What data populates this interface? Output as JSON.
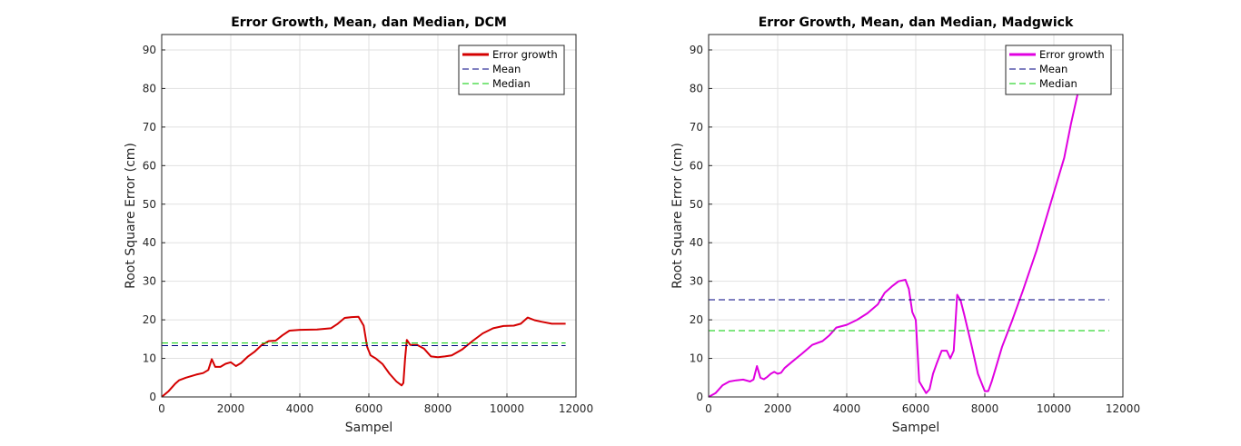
{
  "chart_data": [
    {
      "type": "line",
      "title": "Error Growth, Mean, dan Median, DCM",
      "xlabel": "Sampel",
      "ylabel": "Root Square Error (cm)",
      "xlim": [
        0,
        12000
      ],
      "ylim": [
        0,
        94
      ],
      "xticks": [
        0,
        2000,
        4000,
        6000,
        8000,
        10000,
        12000
      ],
      "yticks": [
        0,
        10,
        20,
        30,
        40,
        50,
        60,
        70,
        80,
        90
      ],
      "xtick_labels": [
        "0",
        "2000",
        "4000",
        "6000",
        "8000",
        "10000",
        "12000"
      ],
      "ytick_labels": [
        "0",
        "10",
        "20",
        "30",
        "40",
        "50",
        "60",
        "70",
        "80",
        "90"
      ],
      "grid": true,
      "legend_position": "top-right",
      "series": [
        {
          "name": "Error growth",
          "style": "solid",
          "color": "#d40000",
          "x": [
            0,
            200,
            400,
            500,
            700,
            1000,
            1200,
            1350,
            1450,
            1550,
            1700,
            1850,
            2000,
            2150,
            2300,
            2500,
            2700,
            2900,
            3100,
            3300,
            3500,
            3700,
            4000,
            4500,
            4900,
            5100,
            5300,
            5500,
            5700,
            5850,
            5950,
            6050,
            6200,
            6400,
            6600,
            6800,
            6950,
            7000,
            7050,
            7100,
            7200,
            7400,
            7600,
            7800,
            8000,
            8200,
            8400,
            8700,
            9000,
            9300,
            9600,
            9900,
            10200,
            10400,
            10600,
            10800,
            11000,
            11300,
            11700
          ],
          "y": [
            0,
            1.5,
            3.5,
            4.3,
            5,
            5.8,
            6.2,
            7,
            9.8,
            7.8,
            7.8,
            8.6,
            9,
            8,
            8.8,
            10.5,
            11.8,
            13.5,
            14.5,
            14.6,
            16,
            17.2,
            17.4,
            17.5,
            17.8,
            19,
            20.5,
            20.7,
            20.8,
            18.5,
            13,
            10.8,
            10,
            8.5,
            6,
            4,
            3,
            3.6,
            10,
            14.8,
            13.5,
            13.5,
            12.5,
            10.5,
            10.3,
            10.5,
            10.8,
            12.3,
            14.5,
            16.5,
            17.8,
            18.4,
            18.5,
            19,
            20.6,
            19.9,
            19.5,
            19,
            19
          ]
        },
        {
          "name": "Mean",
          "style": "dashed",
          "color": "#000080",
          "x": [
            0,
            11700
          ],
          "y": [
            13.3,
            13.3
          ]
        },
        {
          "name": "Median",
          "style": "dashed",
          "color": "#00cc00",
          "x": [
            0,
            11700
          ],
          "y": [
            14,
            14
          ]
        }
      ]
    },
    {
      "type": "line",
      "title": "Error Growth, Mean, dan Median, Madgwick",
      "xlabel": "Sampel",
      "ylabel": "Root Square Error (cm)",
      "xlim": [
        0,
        12000
      ],
      "ylim": [
        0,
        94
      ],
      "xticks": [
        0,
        2000,
        4000,
        6000,
        8000,
        10000,
        12000
      ],
      "yticks": [
        0,
        10,
        20,
        30,
        40,
        50,
        60,
        70,
        80,
        90
      ],
      "xtick_labels": [
        "0",
        "2000",
        "4000",
        "6000",
        "8000",
        "10000",
        "12000"
      ],
      "ytick_labels": [
        "0",
        "10",
        "20",
        "30",
        "40",
        "50",
        "60",
        "70",
        "80",
        "90"
      ],
      "grid": true,
      "legend_position": "top-right",
      "series": [
        {
          "name": "Error growth",
          "style": "solid",
          "color": "#e000e0",
          "x": [
            0,
            200,
            400,
            600,
            800,
            1000,
            1200,
            1300,
            1400,
            1500,
            1600,
            1700,
            1800,
            1900,
            2000,
            2100,
            2200,
            2400,
            2700,
            3000,
            3300,
            3500,
            3700,
            4000,
            4300,
            4600,
            4900,
            5100,
            5300,
            5500,
            5700,
            5800,
            5900,
            6000,
            6100,
            6200,
            6300,
            6400,
            6500,
            6600,
            6750,
            6900,
            7000,
            7100,
            7200,
            7300,
            7400,
            7600,
            7800,
            8000,
            8100,
            8200,
            8300,
            8500,
            8800,
            9100,
            9500,
            10000,
            10300,
            10500,
            10700,
            11200,
            11600
          ],
          "y": [
            0,
            1,
            3,
            4,
            4.3,
            4.5,
            4,
            4.5,
            8,
            5,
            4.6,
            5.2,
            6,
            6.5,
            6,
            6.3,
            7.5,
            9,
            11.2,
            13.5,
            14.5,
            16,
            18,
            18.7,
            20,
            21.7,
            24,
            27,
            28.6,
            30,
            30.4,
            28,
            22,
            20,
            4,
            2.5,
            1,
            2,
            6,
            8.5,
            12,
            12,
            10,
            12,
            26.5,
            25,
            21.5,
            14,
            6,
            1.5,
            1.5,
            4,
            7,
            13,
            20,
            27.5,
            38,
            53,
            62,
            71,
            79,
            88.5,
            89
          ]
        },
        {
          "name": "Mean",
          "style": "dashed",
          "color": "#000080",
          "x": [
            0,
            11600
          ],
          "y": [
            25.2,
            25.2
          ]
        },
        {
          "name": "Median",
          "style": "dashed",
          "color": "#00cc00",
          "x": [
            0,
            11600
          ],
          "y": [
            17.2,
            17.2
          ]
        }
      ]
    }
  ]
}
